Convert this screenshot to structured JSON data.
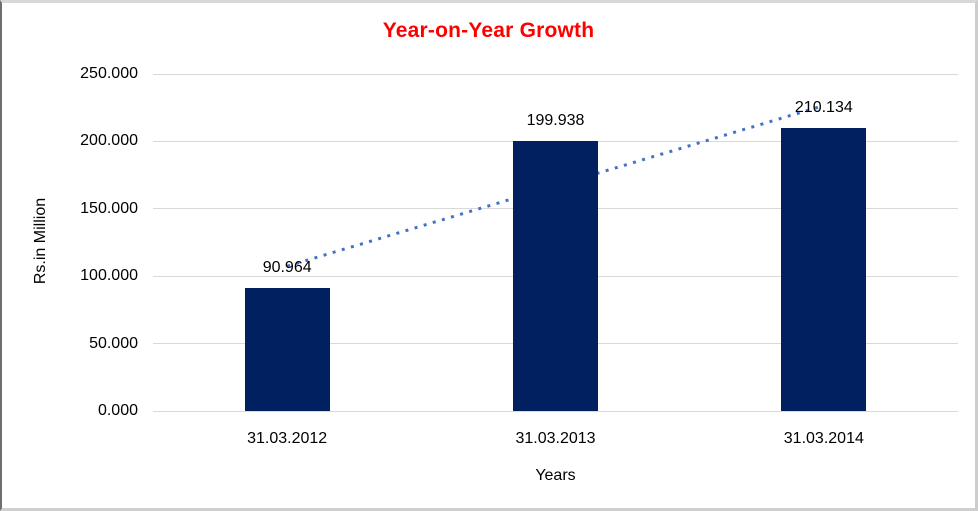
{
  "chart_data": {
    "type": "bar",
    "title": "Year-on-Year Growth",
    "categories": [
      "31.03.2012",
      "31.03.2013",
      "31.03.2014"
    ],
    "values": [
      90.964,
      199.938,
      210.134
    ],
    "data_labels": [
      "90.964",
      "199.938",
      "210.134"
    ],
    "xlabel": "Years",
    "ylabel": "Rs.in Million",
    "ylim": [
      0,
      250
    ],
    "yticks": [
      "0.000",
      "50.000",
      "100.000",
      "150.000",
      "200.000",
      "250.000"
    ],
    "grid": true,
    "legend": "none",
    "trendline": {
      "type": "linear",
      "style": "dotted"
    },
    "colors": {
      "bar": "#002060",
      "trendline": "#4472C4",
      "title": "#FF0000",
      "gridline": "#D9D9D9",
      "text": "#000000",
      "background": "#FFFFFF"
    }
  }
}
